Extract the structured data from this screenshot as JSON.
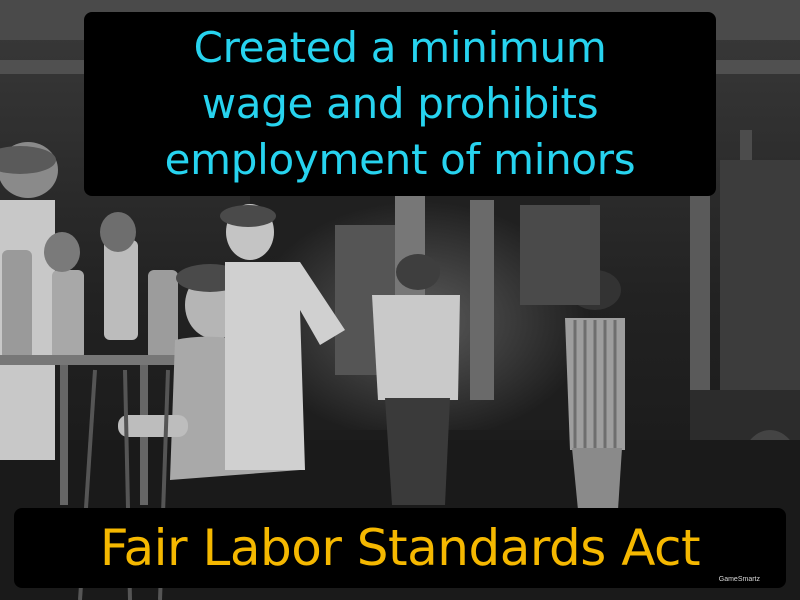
{
  "definition": {
    "text": "Created a minimum\nwage and prohibits\nemployment of minors",
    "color": "#27d3ef"
  },
  "term": {
    "text": "Fair Labor Standards Act",
    "color": "#f5b800"
  },
  "watermark": {
    "text": "GameSmartz"
  },
  "photo": {
    "subject": "historical-black-and-white-photo-child-laborers-glass-factory"
  }
}
